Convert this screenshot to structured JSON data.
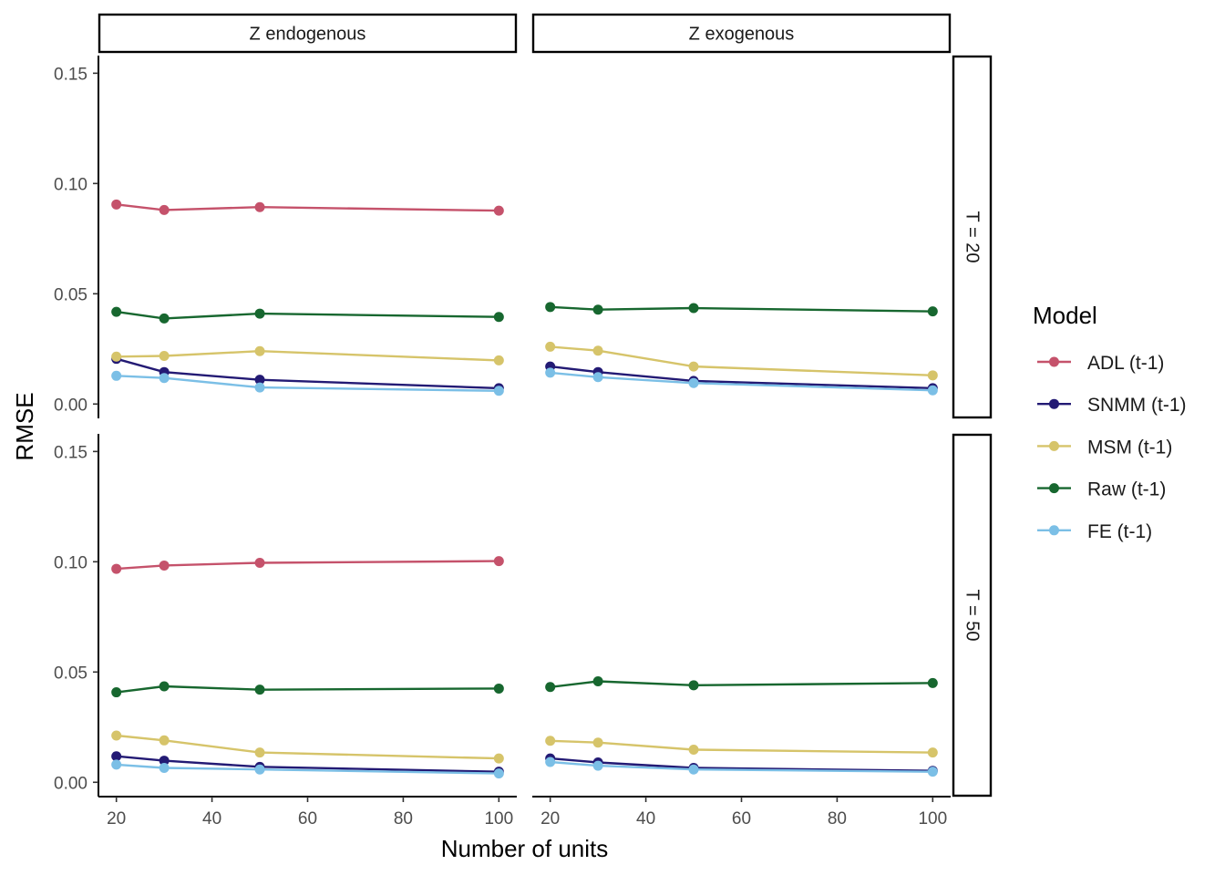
{
  "chart_data": {
    "type": "line",
    "xlabel": "Number of units",
    "ylabel": "RMSE",
    "x": [
      20,
      30,
      50,
      100
    ],
    "xticks": [
      20,
      40,
      60,
      80,
      100
    ],
    "xlim": [
      16.25,
      103.75
    ],
    "yticks": [
      0.0,
      0.05,
      0.1,
      0.15
    ],
    "ytick_labels": [
      "0.00",
      "0.05",
      "0.10",
      "0.15"
    ],
    "ylim": [
      -0.0065,
      0.158
    ],
    "grid": false,
    "legend": {
      "title": "Model",
      "placement": "right",
      "entries": [
        "ADL (t-1)",
        "SNMM (t-1)",
        "MSM (t-1)",
        "Raw (t-1)",
        "FE (t-1)"
      ]
    },
    "columns": [
      "Z endogenous",
      "Z exogenous"
    ],
    "rows": [
      "T = 20",
      "T = 50"
    ],
    "colors": {
      "ADL (t-1)": "#c5526b",
      "SNMM (t-1)": "#231a74",
      "MSM (t-1)": "#d6c46a",
      "Raw (t-1)": "#17672f",
      "FE (t-1)": "#7bbfe6"
    },
    "panels": [
      {
        "row": "T = 20",
        "column": "Z endogenous",
        "series": [
          {
            "name": "ADL (t-1)",
            "values": [
              0.0905,
              0.088,
              0.0893,
              0.0877
            ]
          },
          {
            "name": "SNMM (t-1)",
            "values": [
              0.0205,
              0.0145,
              0.011,
              0.0072
            ]
          },
          {
            "name": "MSM (t-1)",
            "values": [
              0.0215,
              0.0218,
              0.024,
              0.0198
            ]
          },
          {
            "name": "Raw (t-1)",
            "values": [
              0.0418,
              0.0388,
              0.041,
              0.0395
            ]
          },
          {
            "name": "FE (t-1)",
            "values": [
              0.0128,
              0.0118,
              0.0075,
              0.006
            ]
          }
        ]
      },
      {
        "row": "T = 20",
        "column": "Z exogenous",
        "series": [
          {
            "name": "SNMM (t-1)",
            "values": [
              0.017,
              0.0145,
              0.0105,
              0.0072
            ]
          },
          {
            "name": "MSM (t-1)",
            "values": [
              0.026,
              0.0242,
              0.017,
              0.013
            ]
          },
          {
            "name": "Raw (t-1)",
            "values": [
              0.044,
              0.0428,
              0.0435,
              0.042
            ]
          },
          {
            "name": "FE (t-1)",
            "values": [
              0.0142,
              0.0122,
              0.0095,
              0.0062
            ]
          }
        ]
      },
      {
        "row": "T = 50",
        "column": "Z endogenous",
        "series": [
          {
            "name": "ADL (t-1)",
            "values": [
              0.0968,
              0.0983,
              0.0995,
              0.1003
            ]
          },
          {
            "name": "SNMM (t-1)",
            "values": [
              0.0118,
              0.0098,
              0.007,
              0.0048
            ]
          },
          {
            "name": "MSM (t-1)",
            "values": [
              0.0212,
              0.019,
              0.0135,
              0.0108
            ]
          },
          {
            "name": "Raw (t-1)",
            "values": [
              0.0408,
              0.0435,
              0.042,
              0.0425
            ]
          },
          {
            "name": "FE (t-1)",
            "values": [
              0.008,
              0.0065,
              0.0058,
              0.004
            ]
          }
        ]
      },
      {
        "row": "T = 50",
        "column": "Z exogenous",
        "series": [
          {
            "name": "SNMM (t-1)",
            "values": [
              0.0108,
              0.009,
              0.0065,
              0.0052
            ]
          },
          {
            "name": "MSM (t-1)",
            "values": [
              0.0188,
              0.018,
              0.0148,
              0.0135
            ]
          },
          {
            "name": "Raw (t-1)",
            "values": [
              0.0432,
              0.0458,
              0.044,
              0.045
            ]
          },
          {
            "name": "FE (t-1)",
            "values": [
              0.0092,
              0.0075,
              0.0058,
              0.0048
            ]
          }
        ]
      }
    ]
  }
}
